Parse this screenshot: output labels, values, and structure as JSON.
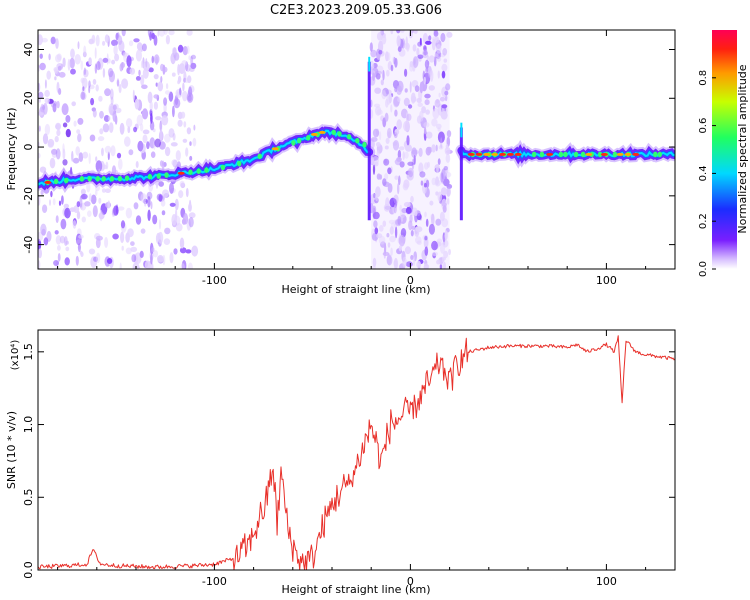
{
  "title": "C2E3.2023.209.05.33.G06",
  "chart_data": [
    {
      "type": "heatmap",
      "xlabel": "Height of straight line (km)",
      "ylabel": "Frequency (Hz)",
      "xlim": [
        -190,
        135
      ],
      "ylim": [
        -50,
        48
      ],
      "x_ticks": [
        -100,
        0,
        100
      ],
      "y_ticks": [
        -40,
        -20,
        0,
        20,
        40
      ],
      "colorbar": {
        "label": "Normalized spectral amplitude",
        "range": [
          0,
          1
        ],
        "ticks": [
          "0.0",
          "0.2",
          "0.4",
          "0.6",
          "0.8"
        ]
      },
      "ridge": {
        "x": [
          -190,
          -170,
          -150,
          -130,
          -110,
          -100,
          -90,
          -80,
          -70,
          -60,
          -55,
          -50,
          -45,
          -40,
          -35,
          -30,
          -25,
          -21,
          26,
          30,
          50,
          80,
          100,
          120,
          135
        ],
        "y": [
          -15,
          -13,
          -13,
          -12,
          -10,
          -9,
          -7,
          -5,
          -1,
          2,
          3,
          5,
          6,
          6,
          5,
          3,
          1,
          -2,
          -2,
          -3,
          -3,
          -3,
          -3,
          -3,
          -3
        ]
      },
      "noise_bands": [
        [
          -190,
          -110
        ],
        [
          -20,
          20
        ]
      ]
    },
    {
      "type": "line",
      "xlabel": "Height of straight line (km)",
      "ylabel": "SNR (10 * v/v)",
      "y_multiplier": "(x10⁴)",
      "xlim": [
        -190,
        135
      ],
      "ylim": [
        0,
        1.65
      ],
      "x_ticks": [
        -100,
        0,
        100
      ],
      "y_ticks": [
        0.0,
        0.5,
        1.0,
        1.5
      ],
      "color": "#e8302a",
      "series": [
        {
          "x": [
            -190,
            -175,
            -165,
            -162,
            -158,
            -150,
            -130,
            -110,
            -100,
            -90,
            -82,
            -78,
            -74,
            -70,
            -68,
            -66,
            -62,
            -58,
            -55,
            -50,
            -45,
            -40,
            -35,
            -30,
            -25,
            -20,
            -15,
            -10,
            -5,
            0,
            5,
            10,
            15,
            20,
            25,
            30,
            40,
            50,
            60,
            70,
            80,
            85,
            90,
            95,
            100,
            104,
            106,
            108,
            110,
            115,
            120,
            130,
            135
          ],
          "y": [
            0.02,
            0.03,
            0.04,
            0.14,
            0.04,
            0.03,
            0.02,
            0.03,
            0.04,
            0.08,
            0.18,
            0.32,
            0.45,
            0.72,
            0.3,
            0.68,
            0.25,
            0.1,
            0.05,
            0.08,
            0.28,
            0.45,
            0.55,
            0.62,
            0.8,
            1.0,
            0.75,
            1.0,
            1.05,
            1.1,
            1.18,
            1.3,
            1.42,
            1.3,
            1.45,
            1.5,
            1.53,
            1.54,
            1.54,
            1.54,
            1.53,
            1.55,
            1.5,
            1.52,
            1.55,
            1.5,
            1.6,
            1.15,
            1.58,
            1.5,
            1.48,
            1.46,
            1.45
          ]
        }
      ]
    }
  ]
}
